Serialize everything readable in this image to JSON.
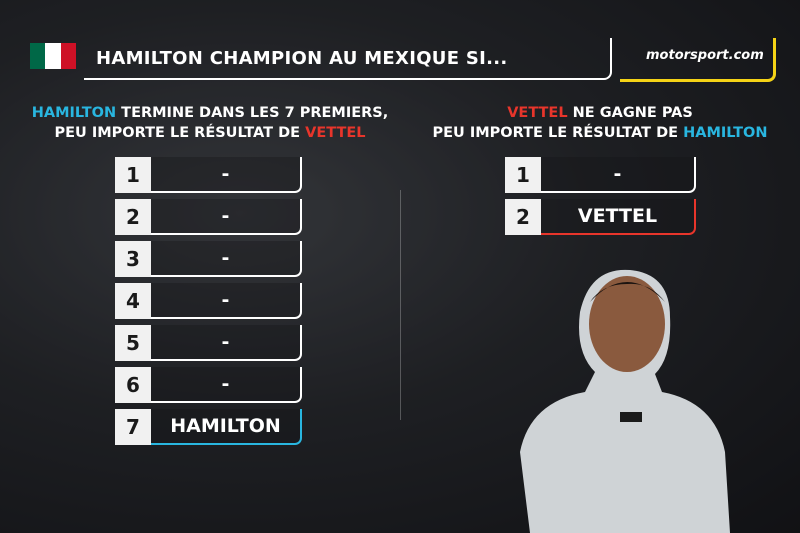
{
  "header": {
    "title": "HAMILTON CHAMPION AU MEXIQUE SI...",
    "logo": "motorsport.com"
  },
  "left": {
    "heading": [
      [
        {
          "text": "HAMILTON",
          "color": "#29b6e0"
        },
        {
          "text": "TERMINE DANS LES 7 PREMIERS,",
          "color": "#ffffff"
        }
      ],
      [
        {
          "text": "PEU IMPORTE LE RÉSULTAT DE",
          "color": "#ffffff"
        },
        {
          "text": "VETTEL",
          "color": "#e8352b"
        }
      ]
    ],
    "rows": [
      {
        "position": 1,
        "driver": "-"
      },
      {
        "position": 2,
        "driver": "-"
      },
      {
        "position": 3,
        "driver": "-"
      },
      {
        "position": 4,
        "driver": "-"
      },
      {
        "position": 5,
        "driver": "-"
      },
      {
        "position": 6,
        "driver": "-"
      },
      {
        "position": 7,
        "driver": "HAMILTON",
        "accent": "#29b6e0"
      }
    ]
  },
  "right": {
    "heading": [
      [
        {
          "text": "VETTEL",
          "color": "#e8352b"
        },
        {
          "text": "NE GAGNE PAS",
          "color": "#ffffff"
        }
      ],
      [
        {
          "text": "PEU IMPORTE LE RÉSULTAT DE",
          "color": "#ffffff"
        },
        {
          "text": "HAMILTON",
          "color": "#29b6e0"
        }
      ]
    ],
    "rows": [
      {
        "position": 1,
        "driver": "-"
      },
      {
        "position": 2,
        "driver": "VETTEL",
        "accent": "#e8352b"
      }
    ]
  }
}
